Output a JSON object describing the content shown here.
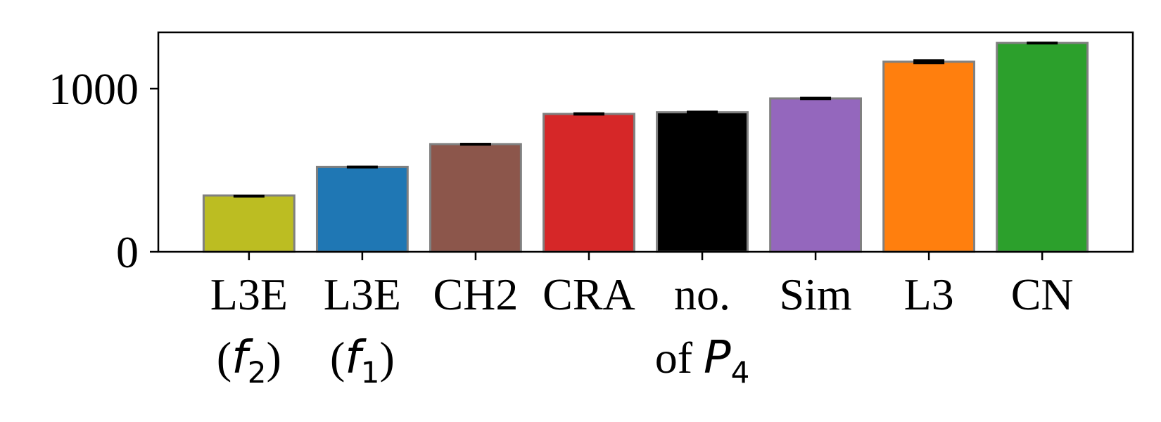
{
  "chart_data": {
    "type": "bar",
    "categories": [
      {
        "lines": [
          "L3E",
          "(f2)"
        ],
        "math": "f",
        "sub": "2"
      },
      {
        "lines": [
          "L3E",
          "(f1)"
        ],
        "math": "f",
        "sub": "1"
      },
      {
        "lines": [
          "CH2"
        ]
      },
      {
        "lines": [
          "CRA"
        ]
      },
      {
        "lines": [
          "no.",
          "of P4"
        ],
        "math": "P",
        "sub": "4"
      },
      {
        "lines": [
          "Sim"
        ]
      },
      {
        "lines": [
          "L3"
        ]
      },
      {
        "lines": [
          "CN"
        ]
      }
    ],
    "values": [
      345,
      520,
      660,
      845,
      855,
      940,
      1165,
      1280
    ],
    "errors": [
      5,
      8,
      8,
      10,
      10,
      10,
      15,
      8
    ],
    "colors": [
      "#bcbd22",
      "#1f77b4",
      "#8c564b",
      "#d62728",
      "#000000",
      "#9467bd",
      "#ff7f0e",
      "#2ca02c"
    ],
    "edge_color": "#808080",
    "ylim": [
      0,
      1345
    ],
    "yticks": [
      0,
      1000
    ],
    "ytick_labels": [
      "0",
      "1000"
    ],
    "title": "",
    "xlabel": "",
    "ylabel": "",
    "grid": false
  }
}
